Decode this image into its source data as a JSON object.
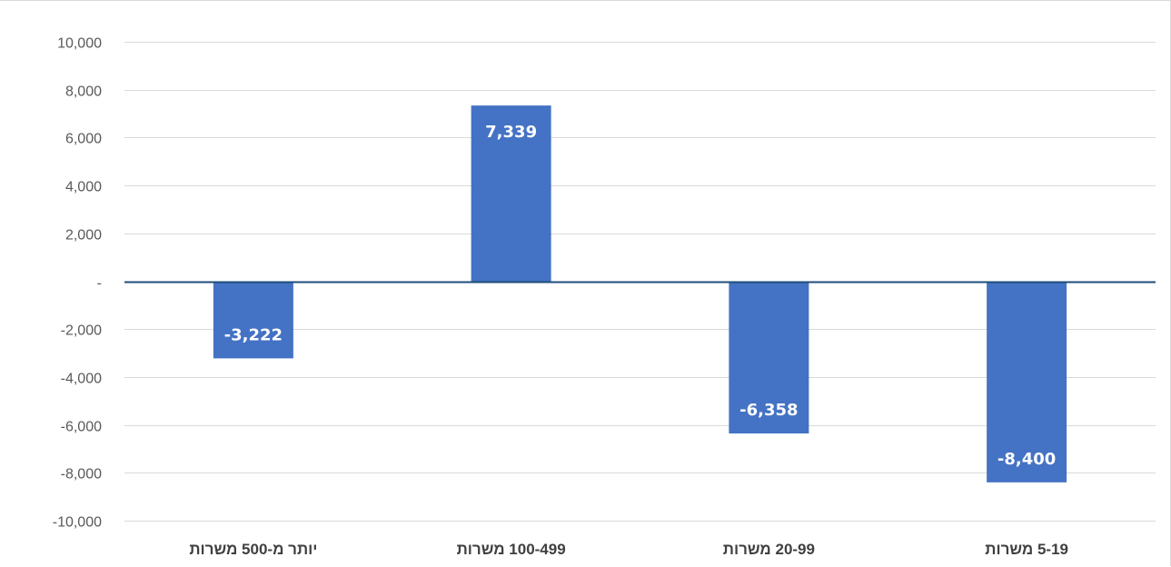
{
  "chart_data": {
    "type": "bar",
    "categories": [
      "יותר מ-500 משרות",
      "100-499 משרות",
      "20-99 משרות",
      "5-19 משרות"
    ],
    "values": [
      -3222,
      7339,
      -6358,
      -8400
    ],
    "data_labels": [
      "-3,222",
      "7,339",
      "-6,358",
      "-8,400"
    ],
    "ylim": [
      -10000,
      10000
    ],
    "yticks": [
      10000,
      8000,
      6000,
      4000,
      2000,
      0,
      -2000,
      -4000,
      -6000,
      -8000,
      -10000
    ],
    "ytick_labels": [
      "10,000",
      "8,000",
      "6,000",
      "4,000",
      "2,000",
      "-",
      "-2,000",
      "-4,000",
      "-6,000",
      "-8,000",
      "-10,000"
    ],
    "title": "",
    "xlabel": "",
    "ylabel": "",
    "grid": true,
    "legend": "none"
  },
  "colors": {
    "bar": "#4472c4",
    "zero_line": "#1f4e79",
    "gridline": "#d9d9d9",
    "data_label": "#ffffff"
  }
}
